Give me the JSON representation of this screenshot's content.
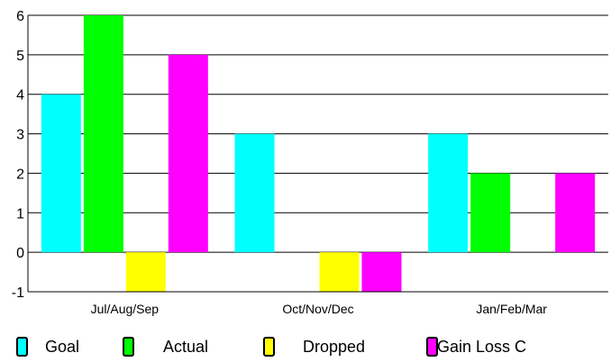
{
  "chart_data": {
    "type": "bar",
    "categories": [
      "Jul/Aug/Sep",
      "Oct/Nov/Dec",
      "Jan/Feb/Mar"
    ],
    "series": [
      {
        "name": "Goal",
        "color": "#00ffff",
        "values": [
          4,
          3,
          3
        ]
      },
      {
        "name": "Actual",
        "color": "#00ff00",
        "values": [
          6,
          0,
          2
        ]
      },
      {
        "name": "Dropped",
        "color": "#ffff00",
        "values": [
          -1,
          -1,
          0
        ]
      },
      {
        "name": "Gain Loss C",
        "color": "#ff00ff",
        "values": [
          5,
          -1,
          2
        ]
      }
    ],
    "ylim": [
      -1,
      6
    ],
    "yticks": [
      "-1",
      "0",
      "1",
      "2",
      "3",
      "4",
      "5",
      "6"
    ],
    "grid": true,
    "legend_position": "bottom",
    "title": "",
    "xlabel": "",
    "ylabel": ""
  }
}
